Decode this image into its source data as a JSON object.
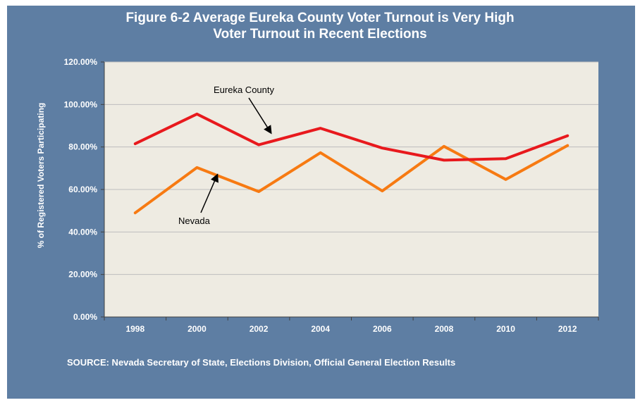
{
  "chart_data": {
    "type": "line",
    "title_lines": [
      "Figure 6-2 Average Eureka County Voter Turnout is Very High",
      "Voter Turnout in Recent Elections"
    ],
    "xlabel": "",
    "ylabel": "% of Registered Voters Participating",
    "categories": [
      "1998",
      "2000",
      "2002",
      "2004",
      "2006",
      "2008",
      "2010",
      "2012"
    ],
    "y_ticks": [
      "0.00%",
      "20.00%",
      "40.00%",
      "60.00%",
      "80.00%",
      "100.00%",
      "120.00%"
    ],
    "ylim": [
      0,
      120
    ],
    "grid": true,
    "series": [
      {
        "name": "Eureka County",
        "color": "#e8191d",
        "values": [
          81.5,
          95.5,
          81.0,
          88.8,
          79.5,
          73.8,
          74.5,
          85.3
        ]
      },
      {
        "name": "Nevada",
        "color": "#f77a12",
        "values": [
          49.0,
          70.3,
          59.0,
          77.3,
          59.3,
          80.3,
          64.7,
          80.7
        ]
      }
    ],
    "annotations": [
      {
        "text": "Eureka County",
        "series": "Eureka County"
      },
      {
        "text": "Nevada",
        "series": "Nevada"
      }
    ],
    "source": "SOURCE: Nevada Secretary of State, Elections Division, Official General Election Results",
    "colors": {
      "frame": "#5e7ea3",
      "plot_bg": "#eeebe2",
      "grid": "#bdbdbd",
      "text": "#ffffff"
    }
  }
}
